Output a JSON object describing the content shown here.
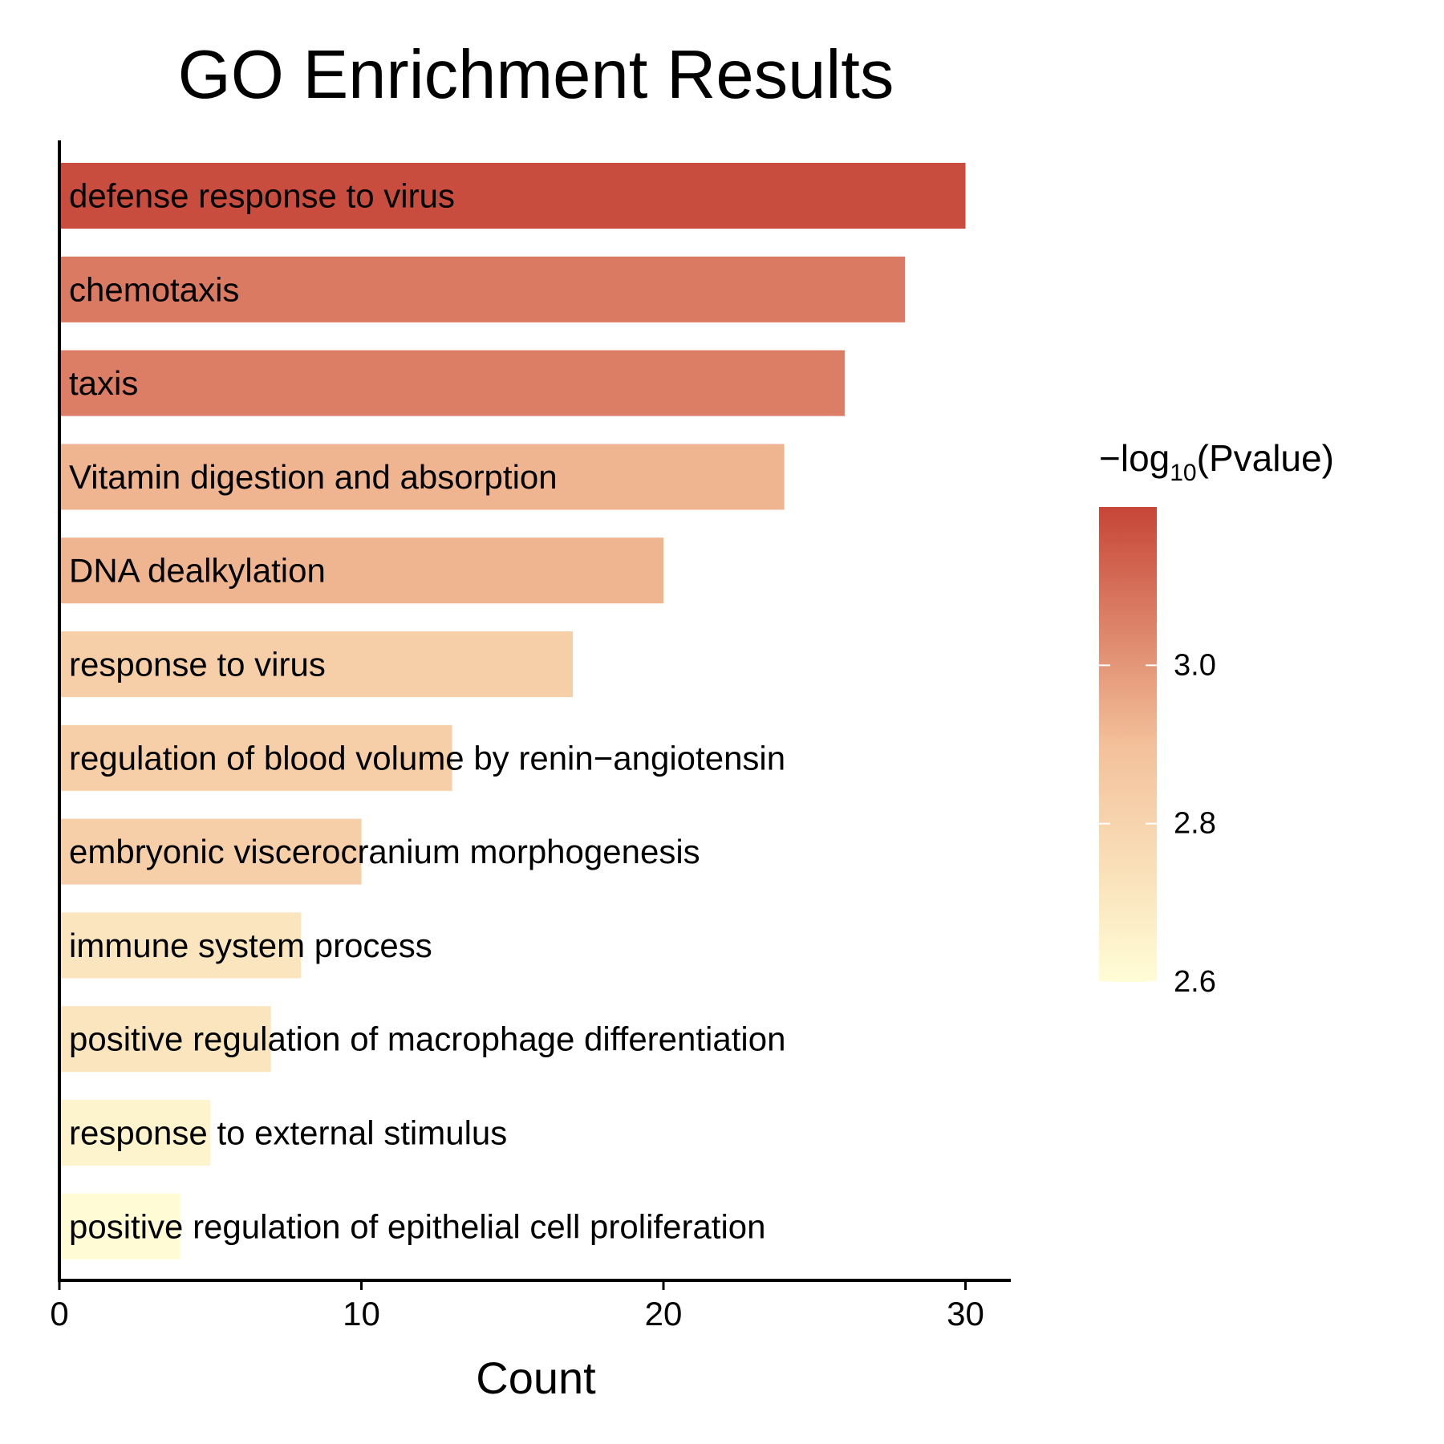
{
  "chart_data": {
    "type": "bar",
    "orientation": "horizontal",
    "title": "GO Enrichment Results",
    "xlabel": "Count",
    "ylabel": "",
    "xlim": [
      0,
      31.5
    ],
    "xticks": [
      0,
      10,
      20,
      30
    ],
    "grid": false,
    "categories": [
      "defense response to virus",
      "chemotaxis",
      "taxis",
      "Vitamin digestion and absorption",
      "DNA dealkylation",
      "response to virus",
      "regulation of blood volume by renin−angiotensin",
      "embryonic viscerocranium morphogenesis",
      "immune system process",
      "positive regulation of macrophage differentiation",
      "response to external stimulus",
      "positive regulation of epithelial cell proliferation"
    ],
    "values": [
      30,
      28,
      26,
      24,
      20,
      17,
      13,
      10,
      8,
      7,
      5,
      4
    ],
    "neg_log10_pvalue": [
      3.18,
      3.07,
      3.06,
      2.93,
      2.93,
      2.83,
      2.83,
      2.83,
      2.72,
      2.72,
      2.65,
      2.61
    ],
    "color_scale": {
      "title_prefix": "−log",
      "title_sub": "10",
      "title_suffix": "(Pvalue)",
      "min": 2.6,
      "max": 3.2,
      "ticks": [
        2.6,
        2.8,
        3.0
      ],
      "tick_labels": [
        "2.6",
        "2.8",
        "3.0"
      ],
      "low_color": "#fffdd6",
      "mid_color": "#f3c09a",
      "high_color": "#c64537"
    },
    "legend_position": "right"
  }
}
